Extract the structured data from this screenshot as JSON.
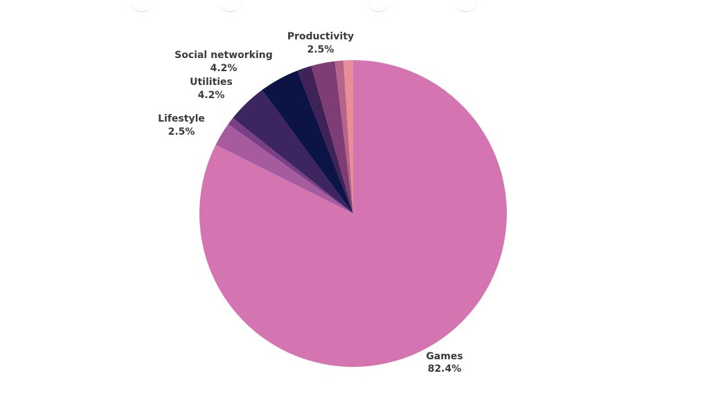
{
  "chart_data": {
    "type": "pie",
    "start_angle_deg": 0,
    "direction": "clockwise",
    "slices": [
      {
        "label": "Games",
        "value": 82.4,
        "display": "82.4%",
        "color": "#d474b0",
        "labeled": true
      },
      {
        "label": "Lifestyle",
        "value": 2.5,
        "display": "2.5%",
        "color": "#a65b9f",
        "labeled": true
      },
      {
        "label": "",
        "value": 0.8,
        "display": "",
        "color": "#7b3f86",
        "labeled": false
      },
      {
        "label": "Utilities",
        "value": 4.2,
        "display": "4.2%",
        "color": "#3d2560",
        "labeled": true
      },
      {
        "label": "Social networking",
        "value": 4.2,
        "display": "4.2%",
        "color": "#0c1445",
        "labeled": true
      },
      {
        "label": "",
        "value": 1.5,
        "display": "",
        "color": "#3f2258",
        "labeled": false
      },
      {
        "label": "Productivity",
        "value": 2.5,
        "display": "2.5%",
        "color": "#7e3d74",
        "labeled": true
      },
      {
        "label": "",
        "value": 0.9,
        "display": "",
        "color": "#b8648a",
        "labeled": false
      },
      {
        "label": "",
        "value": 1.0,
        "display": "",
        "color": "#e88e99",
        "labeled": false
      }
    ]
  }
}
